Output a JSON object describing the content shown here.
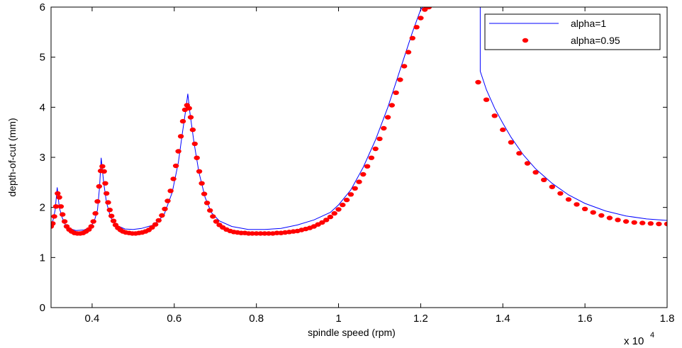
{
  "chart_data": {
    "type": "line",
    "title": "",
    "xlabel": "spindle speed (rpm)",
    "ylabel": "depth-of-cut (mm)",
    "x_multiplier_label": "x 10",
    "x_multiplier_exponent": "4",
    "xlim": [
      0.3,
      1.8
    ],
    "ylim": [
      0,
      6
    ],
    "x_ticks": [
      0.4,
      0.6,
      0.8,
      1.0,
      1.2,
      1.4,
      1.6,
      1.8
    ],
    "x_tick_labels": [
      "0.4",
      "0.6",
      "0.8",
      "1",
      "1.2",
      "1.4",
      "1.6",
      "1.8"
    ],
    "y_ticks": [
      0,
      1,
      2,
      3,
      4,
      5,
      6
    ],
    "y_tick_labels": [
      "0",
      "1",
      "2",
      "3",
      "4",
      "5",
      "6"
    ],
    "grid": false,
    "legend_position": "top-right",
    "series": [
      {
        "name": "alpha=1",
        "style": "line",
        "color": "#0000ff",
        "segments": [
          [
            [
              0.3,
              1.65
            ],
            [
              0.305,
              1.75
            ],
            [
              0.31,
              1.95
            ],
            [
              0.315,
              2.4
            ],
            [
              0.32,
              2.0
            ],
            [
              0.327,
              1.8
            ],
            [
              0.335,
              1.65
            ],
            [
              0.345,
              1.58
            ],
            [
              0.36,
              1.54
            ],
            [
              0.38,
              1.55
            ],
            [
              0.395,
              1.6
            ],
            [
              0.405,
              1.72
            ],
            [
              0.413,
              1.95
            ],
            [
              0.418,
              2.4
            ],
            [
              0.422,
              2.99
            ],
            [
              0.428,
              2.5
            ],
            [
              0.435,
              2.1
            ],
            [
              0.445,
              1.8
            ],
            [
              0.46,
              1.64
            ],
            [
              0.48,
              1.57
            ],
            [
              0.5,
              1.56
            ],
            [
              0.52,
              1.58
            ],
            [
              0.55,
              1.65
            ],
            [
              0.575,
              1.85
            ],
            [
              0.595,
              2.3
            ],
            [
              0.61,
              2.9
            ],
            [
              0.62,
              3.5
            ],
            [
              0.628,
              3.95
            ],
            [
              0.633,
              4.27
            ],
            [
              0.638,
              3.9
            ],
            [
              0.648,
              3.3
            ],
            [
              0.66,
              2.7
            ],
            [
              0.675,
              2.2
            ],
            [
              0.69,
              1.9
            ],
            [
              0.71,
              1.73
            ],
            [
              0.74,
              1.62
            ],
            [
              0.78,
              1.56
            ],
            [
              0.82,
              1.56
            ],
            [
              0.86,
              1.58
            ],
            [
              0.9,
              1.65
            ],
            [
              0.94,
              1.75
            ],
            [
              0.98,
              1.9
            ],
            [
              1.0,
              2.05
            ],
            [
              1.03,
              2.35
            ],
            [
              1.06,
              2.8
            ],
            [
              1.09,
              3.35
            ],
            [
              1.12,
              4.0
            ],
            [
              1.15,
              4.75
            ],
            [
              1.18,
              5.5
            ],
            [
              1.2,
              5.95
            ],
            [
              1.205,
              6.0
            ]
          ],
          [
            [
              1.345,
              6.0
            ],
            [
              1.345,
              4.72
            ],
            [
              1.36,
              4.35
            ],
            [
              1.38,
              3.98
            ],
            [
              1.4,
              3.68
            ],
            [
              1.42,
              3.4
            ],
            [
              1.45,
              3.05
            ],
            [
              1.48,
              2.77
            ],
            [
              1.52,
              2.48
            ],
            [
              1.56,
              2.25
            ],
            [
              1.6,
              2.08
            ],
            [
              1.65,
              1.93
            ],
            [
              1.7,
              1.83
            ],
            [
              1.75,
              1.77
            ],
            [
              1.8,
              1.74
            ]
          ]
        ]
      },
      {
        "name": "alpha=0.95",
        "style": "dots",
        "color": "#ff0000",
        "points": [
          [
            0.3,
            1.62
          ],
          [
            0.304,
            1.68
          ],
          [
            0.308,
            1.82
          ],
          [
            0.312,
            2.02
          ],
          [
            0.316,
            2.28
          ],
          [
            0.32,
            2.2
          ],
          [
            0.324,
            2.02
          ],
          [
            0.328,
            1.86
          ],
          [
            0.333,
            1.72
          ],
          [
            0.338,
            1.62
          ],
          [
            0.344,
            1.56
          ],
          [
            0.35,
            1.52
          ],
          [
            0.357,
            1.49
          ],
          [
            0.364,
            1.48
          ],
          [
            0.371,
            1.48
          ],
          [
            0.378,
            1.49
          ],
          [
            0.385,
            1.52
          ],
          [
            0.392,
            1.56
          ],
          [
            0.398,
            1.62
          ],
          [
            0.403,
            1.72
          ],
          [
            0.408,
            1.88
          ],
          [
            0.413,
            2.12
          ],
          [
            0.417,
            2.42
          ],
          [
            0.421,
            2.73
          ],
          [
            0.425,
            2.82
          ],
          [
            0.429,
            2.72
          ],
          [
            0.432,
            2.48
          ],
          [
            0.435,
            2.28
          ],
          [
            0.439,
            2.1
          ],
          [
            0.443,
            1.95
          ],
          [
            0.447,
            1.83
          ],
          [
            0.452,
            1.73
          ],
          [
            0.457,
            1.65
          ],
          [
            0.463,
            1.59
          ],
          [
            0.469,
            1.55
          ],
          [
            0.475,
            1.52
          ],
          [
            0.482,
            1.5
          ],
          [
            0.49,
            1.49
          ],
          [
            0.498,
            1.48
          ],
          [
            0.506,
            1.48
          ],
          [
            0.514,
            1.49
          ],
          [
            0.522,
            1.5
          ],
          [
            0.53,
            1.52
          ],
          [
            0.538,
            1.55
          ],
          [
            0.546,
            1.6
          ],
          [
            0.554,
            1.66
          ],
          [
            0.562,
            1.74
          ],
          [
            0.57,
            1.84
          ],
          [
            0.577,
            1.97
          ],
          [
            0.584,
            2.13
          ],
          [
            0.591,
            2.33
          ],
          [
            0.598,
            2.57
          ],
          [
            0.604,
            2.83
          ],
          [
            0.61,
            3.12
          ],
          [
            0.616,
            3.42
          ],
          [
            0.621,
            3.72
          ],
          [
            0.626,
            3.95
          ],
          [
            0.631,
            4.04
          ],
          [
            0.636,
            3.98
          ],
          [
            0.64,
            3.8
          ],
          [
            0.645,
            3.55
          ],
          [
            0.65,
            3.27
          ],
          [
            0.655,
            2.99
          ],
          [
            0.661,
            2.72
          ],
          [
            0.667,
            2.48
          ],
          [
            0.673,
            2.27
          ],
          [
            0.68,
            2.09
          ],
          [
            0.687,
            1.94
          ],
          [
            0.694,
            1.82
          ],
          [
            0.702,
            1.72
          ],
          [
            0.71,
            1.65
          ],
          [
            0.718,
            1.6
          ],
          [
            0.727,
            1.56
          ],
          [
            0.736,
            1.53
          ],
          [
            0.745,
            1.51
          ],
          [
            0.754,
            1.5
          ],
          [
            0.763,
            1.49
          ],
          [
            0.772,
            1.49
          ],
          [
            0.781,
            1.48
          ],
          [
            0.79,
            1.48
          ],
          [
            0.8,
            1.48
          ],
          [
            0.81,
            1.48
          ],
          [
            0.82,
            1.48
          ],
          [
            0.83,
            1.48
          ],
          [
            0.84,
            1.48
          ],
          [
            0.85,
            1.49
          ],
          [
            0.86,
            1.49
          ],
          [
            0.87,
            1.5
          ],
          [
            0.88,
            1.51
          ],
          [
            0.89,
            1.52
          ],
          [
            0.9,
            1.53
          ],
          [
            0.91,
            1.55
          ],
          [
            0.92,
            1.57
          ],
          [
            0.93,
            1.59
          ],
          [
            0.94,
            1.62
          ],
          [
            0.95,
            1.66
          ],
          [
            0.96,
            1.7
          ],
          [
            0.97,
            1.75
          ],
          [
            0.98,
            1.81
          ],
          [
            0.99,
            1.88
          ],
          [
            1.0,
            1.96
          ],
          [
            1.01,
            2.05
          ],
          [
            1.02,
            2.15
          ],
          [
            1.03,
            2.26
          ],
          [
            1.04,
            2.38
          ],
          [
            1.05,
            2.51
          ],
          [
            1.06,
            2.66
          ],
          [
            1.07,
            2.82
          ],
          [
            1.08,
            2.99
          ],
          [
            1.09,
            3.17
          ],
          [
            1.1,
            3.37
          ],
          [
            1.11,
            3.58
          ],
          [
            1.12,
            3.8
          ],
          [
            1.13,
            4.04
          ],
          [
            1.14,
            4.29
          ],
          [
            1.15,
            4.55
          ],
          [
            1.16,
            4.82
          ],
          [
            1.17,
            5.1
          ],
          [
            1.18,
            5.38
          ],
          [
            1.19,
            5.6
          ],
          [
            1.2,
            5.78
          ],
          [
            1.21,
            5.95
          ],
          [
            1.22,
            6.0
          ],
          [
            1.34,
            4.5
          ],
          [
            1.36,
            4.15
          ],
          [
            1.38,
            3.83
          ],
          [
            1.4,
            3.55
          ],
          [
            1.42,
            3.3
          ],
          [
            1.44,
            3.08
          ],
          [
            1.46,
            2.88
          ],
          [
            1.48,
            2.7
          ],
          [
            1.5,
            2.55
          ],
          [
            1.52,
            2.41
          ],
          [
            1.54,
            2.28
          ],
          [
            1.56,
            2.16
          ],
          [
            1.58,
            2.06
          ],
          [
            1.6,
            1.97
          ],
          [
            1.62,
            1.9
          ],
          [
            1.64,
            1.84
          ],
          [
            1.66,
            1.79
          ],
          [
            1.68,
            1.75
          ],
          [
            1.7,
            1.72
          ],
          [
            1.72,
            1.7
          ],
          [
            1.74,
            1.69
          ],
          [
            1.76,
            1.68
          ],
          [
            1.78,
            1.67
          ],
          [
            1.8,
            1.67
          ]
        ]
      }
    ]
  }
}
